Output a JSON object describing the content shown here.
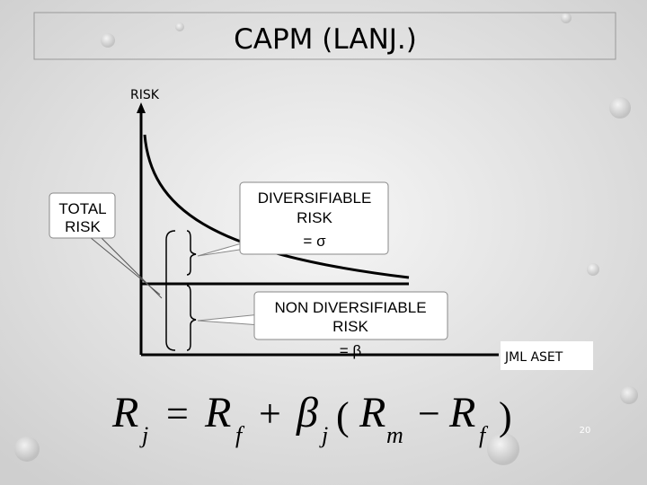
{
  "title": "CAPM (LANJ.)",
  "diagram": {
    "y_axis_label": "RISK",
    "x_axis_label": "JML ASET",
    "callouts": {
      "total_risk": [
        "TOTAL",
        "RISK"
      ],
      "diversifiable": [
        "DIVERSIFIABLE",
        "RISK",
        "= σ"
      ],
      "non_diversifiable": [
        "NON DIVERSIFIABLE",
        "RISK",
        "= β"
      ]
    }
  },
  "formula": {
    "lhs": "R",
    "lhs_sub": "j",
    "eq": "=",
    "rf": "R",
    "rf_sub": "f",
    "plus": "+",
    "beta": "β",
    "beta_sub": "j",
    "open": "(",
    "rm": "R",
    "rm_sub": "m",
    "minus": "−",
    "rf2": "R",
    "rf2_sub": "f",
    "close": ")"
  },
  "page_number": "20"
}
